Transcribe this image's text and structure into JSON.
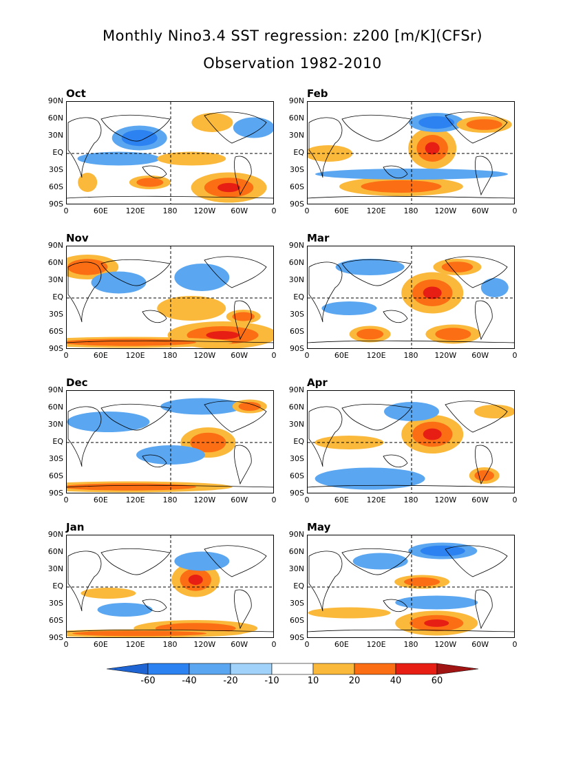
{
  "title": "Monthly Nino3.4 SST regression: z200 [m/K](CFSr)",
  "subtitle": "Observation 1982-2010",
  "chart_data": {
    "type": "heatmap",
    "lat_ticks": [
      "90N",
      "60N",
      "30N",
      "EQ",
      "30S",
      "60S",
      "90S"
    ],
    "lon_ticks": [
      "0",
      "60E",
      "120E",
      "180",
      "120W",
      "60W",
      "0"
    ],
    "panels": [
      {
        "month": "Oct",
        "column": "left"
      },
      {
        "month": "Nov",
        "column": "left"
      },
      {
        "month": "Dec",
        "column": "left"
      },
      {
        "month": "Jan",
        "column": "left"
      },
      {
        "month": "Feb",
        "column": "right"
      },
      {
        "month": "Mar",
        "column": "right"
      },
      {
        "month": "Apr",
        "column": "right"
      },
      {
        "month": "May",
        "column": "right"
      }
    ],
    "colorbar": {
      "levels": [
        "-60",
        "-40",
        "-20",
        "-10",
        "10",
        "20",
        "40",
        "60"
      ],
      "colors": [
        "#1e64d2",
        "#2c82f0",
        "#5aa6f0",
        "#a0d2fa",
        "#ffffff",
        "#fbb93c",
        "#fb6e14",
        "#e61e14",
        "#a01414"
      ]
    }
  }
}
